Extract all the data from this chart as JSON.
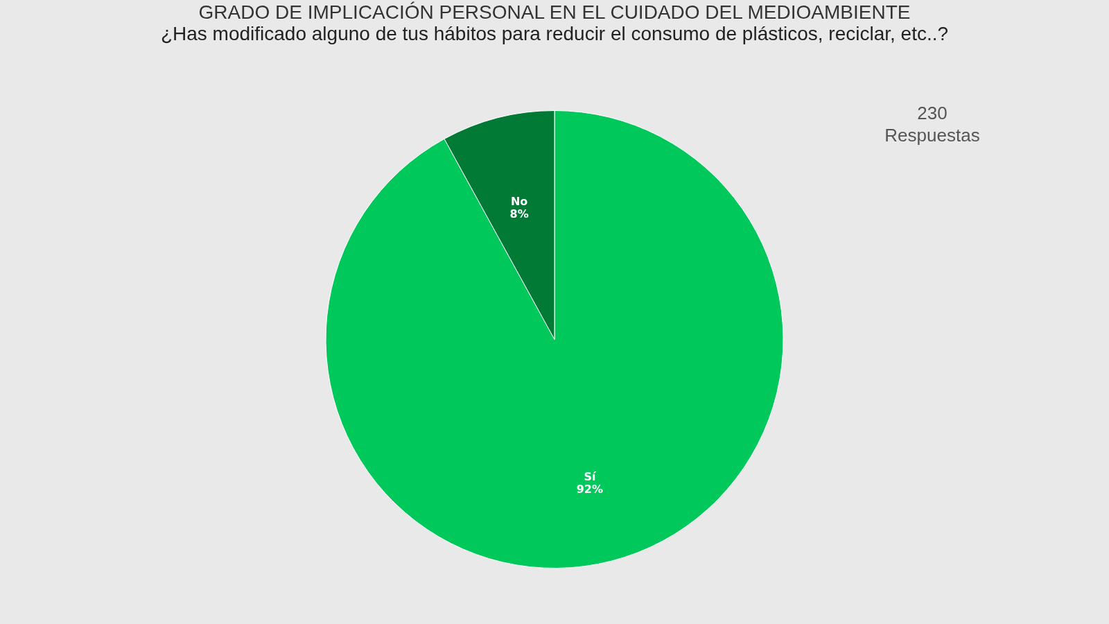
{
  "chart_data": {
    "type": "pie",
    "title": "GRADO DE IMPLICACIÓN PERSONAL EN EL CUIDADO DEL MEDIOAMBIENTE",
    "subtitle": "¿Has modificado alguno de tus hábitos para reducir el consumo de plásticos, reciclar, etc..?",
    "categories": [
      "Sí",
      "No"
    ],
    "values": [
      92,
      8
    ],
    "value_labels": [
      "92%",
      "8%"
    ],
    "colors": [
      "#00c85a",
      "#007a35"
    ],
    "annotations": [
      "230 Respuestas"
    ]
  }
}
